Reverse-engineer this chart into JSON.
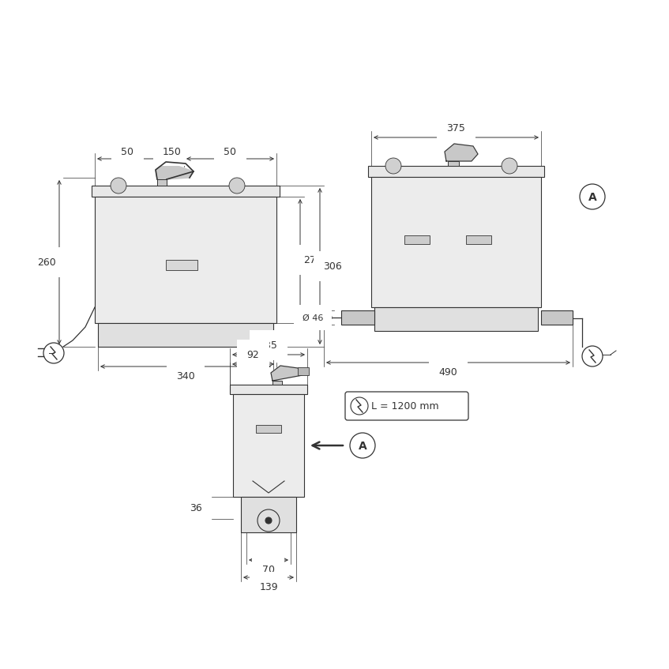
{
  "bg_color": "#ffffff",
  "line_color": "#333333",
  "dim_color": "#333333",
  "font_size": 9,
  "view1_dims": {
    "top_50l": "50",
    "top_150": "150",
    "top_50r": "50",
    "left_260": "260",
    "right_276": "276",
    "right_306": "306",
    "bot_340": "340"
  },
  "view2_dims": {
    "top_375": "375",
    "left_phi46": "Ø 46",
    "bot_490": "490",
    "cable": "L = 1200 mm"
  },
  "view3_dims": {
    "top_185": "185",
    "top_92": "92",
    "left_36": "36",
    "bot_70": "70",
    "bot_139": "139"
  }
}
